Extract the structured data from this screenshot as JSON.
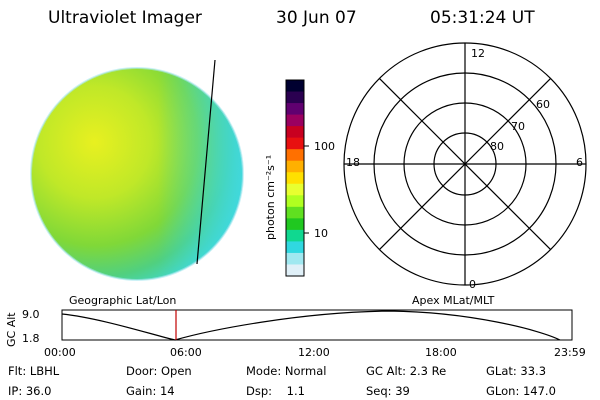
{
  "header": {
    "instrument": "Ultraviolet Imager",
    "date": "30 Jun 07",
    "time": "05:31:24 UT"
  },
  "colorbar": {
    "unit_label": "photon cm⁻²s⁻¹",
    "ticks": [
      "100",
      "10"
    ],
    "colors": [
      "#000030",
      "#2a0050",
      "#600070",
      "#9a0060",
      "#c80020",
      "#e81010",
      "#ff7000",
      "#ffb000",
      "#ffe000",
      "#e8ff30",
      "#b0ff20",
      "#60e020",
      "#20c820",
      "#10d890",
      "#30d8e0",
      "#a0e8f0",
      "#e0f0f8"
    ]
  },
  "polar_plot": {
    "mlt_labels": {
      "top": "12",
      "left": "18",
      "right": "6",
      "bottom": "0"
    },
    "lat_labels": [
      "60",
      "70",
      "80"
    ]
  },
  "timeline": {
    "left_label": "Geographic Lat/Lon",
    "right_label": "Apex MLat/MLT",
    "axis_title": "GC Alt",
    "y_ticks": [
      "9.0",
      "1.8"
    ],
    "x_ticks": [
      "00:00",
      "06:00",
      "12:00",
      "18:00",
      "23:59"
    ],
    "marker_color": "#c00000"
  },
  "info": {
    "flt": "Flt: LBHL",
    "door": "Door: Open",
    "mode": "Mode: Normal",
    "gc_alt": "GC Alt: 2.3 Re",
    "glat": "GLat:  33.3",
    "ip": "IP: 36.0",
    "gain": "Gain: 14",
    "dsp": "Dsp:    1.1",
    "seq": "Seq: 39",
    "glon": "GLon: 147.0"
  }
}
